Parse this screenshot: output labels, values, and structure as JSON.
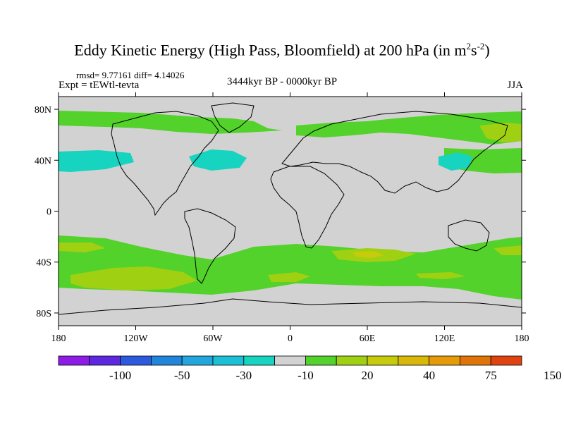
{
  "header": {
    "title": "Eddy Kinetic Energy (High Pass, Bloomfield) at 200 hPa (in m",
    "title_sup1": "2",
    "title_mid": "s",
    "title_sup2": "-2",
    "title_end": ")",
    "stats": "rmsd= 9.77161 diff= 4.14026",
    "expt": "Expt = tEWtl-tevta",
    "period": "3444kyr BP - 0000kyr BP",
    "season": "JJA"
  },
  "map": {
    "projection": "cylindrical-equidistant",
    "lon_range": [
      -180,
      180
    ],
    "lat_range": [
      -90,
      90
    ],
    "lat_ticks": [
      {
        "value": 80,
        "label": "80N"
      },
      {
        "value": 40,
        "label": "40N"
      },
      {
        "value": 0,
        "label": "0"
      },
      {
        "value": -40,
        "label": "40S"
      },
      {
        "value": -80,
        "label": "80S"
      }
    ],
    "lon_ticks": [
      {
        "value": -180,
        "label": "180"
      },
      {
        "value": -120,
        "label": "120W"
      },
      {
        "value": -60,
        "label": "60W"
      },
      {
        "value": 0,
        "label": "0"
      },
      {
        "value": 60,
        "label": "60E"
      },
      {
        "value": 120,
        "label": "120E"
      },
      {
        "value": 180,
        "label": "180"
      }
    ],
    "background_color": "#d2d2d2"
  },
  "colorbar": {
    "colors": [
      "#8f1be6",
      "#5e28e0",
      "#2b5adf",
      "#1f86dc",
      "#22a6dd",
      "#1cc0d6",
      "#17d4c0",
      "#d2d2d2",
      "#52d22a",
      "#a0d012",
      "#c6cc0c",
      "#d9b80a",
      "#e59a08",
      "#e07408",
      "#df4410"
    ],
    "labels": [
      {
        "index": 2,
        "text": "-100"
      },
      {
        "index": 4,
        "text": "-50"
      },
      {
        "index": 6,
        "text": "-30"
      },
      {
        "index": 8,
        "text": "-10"
      },
      {
        "index": 10,
        "text": "20"
      },
      {
        "index": 12,
        "text": "40"
      },
      {
        "index": 14,
        "text": "75"
      },
      {
        "index": 16,
        "text": "150"
      }
    ]
  }
}
